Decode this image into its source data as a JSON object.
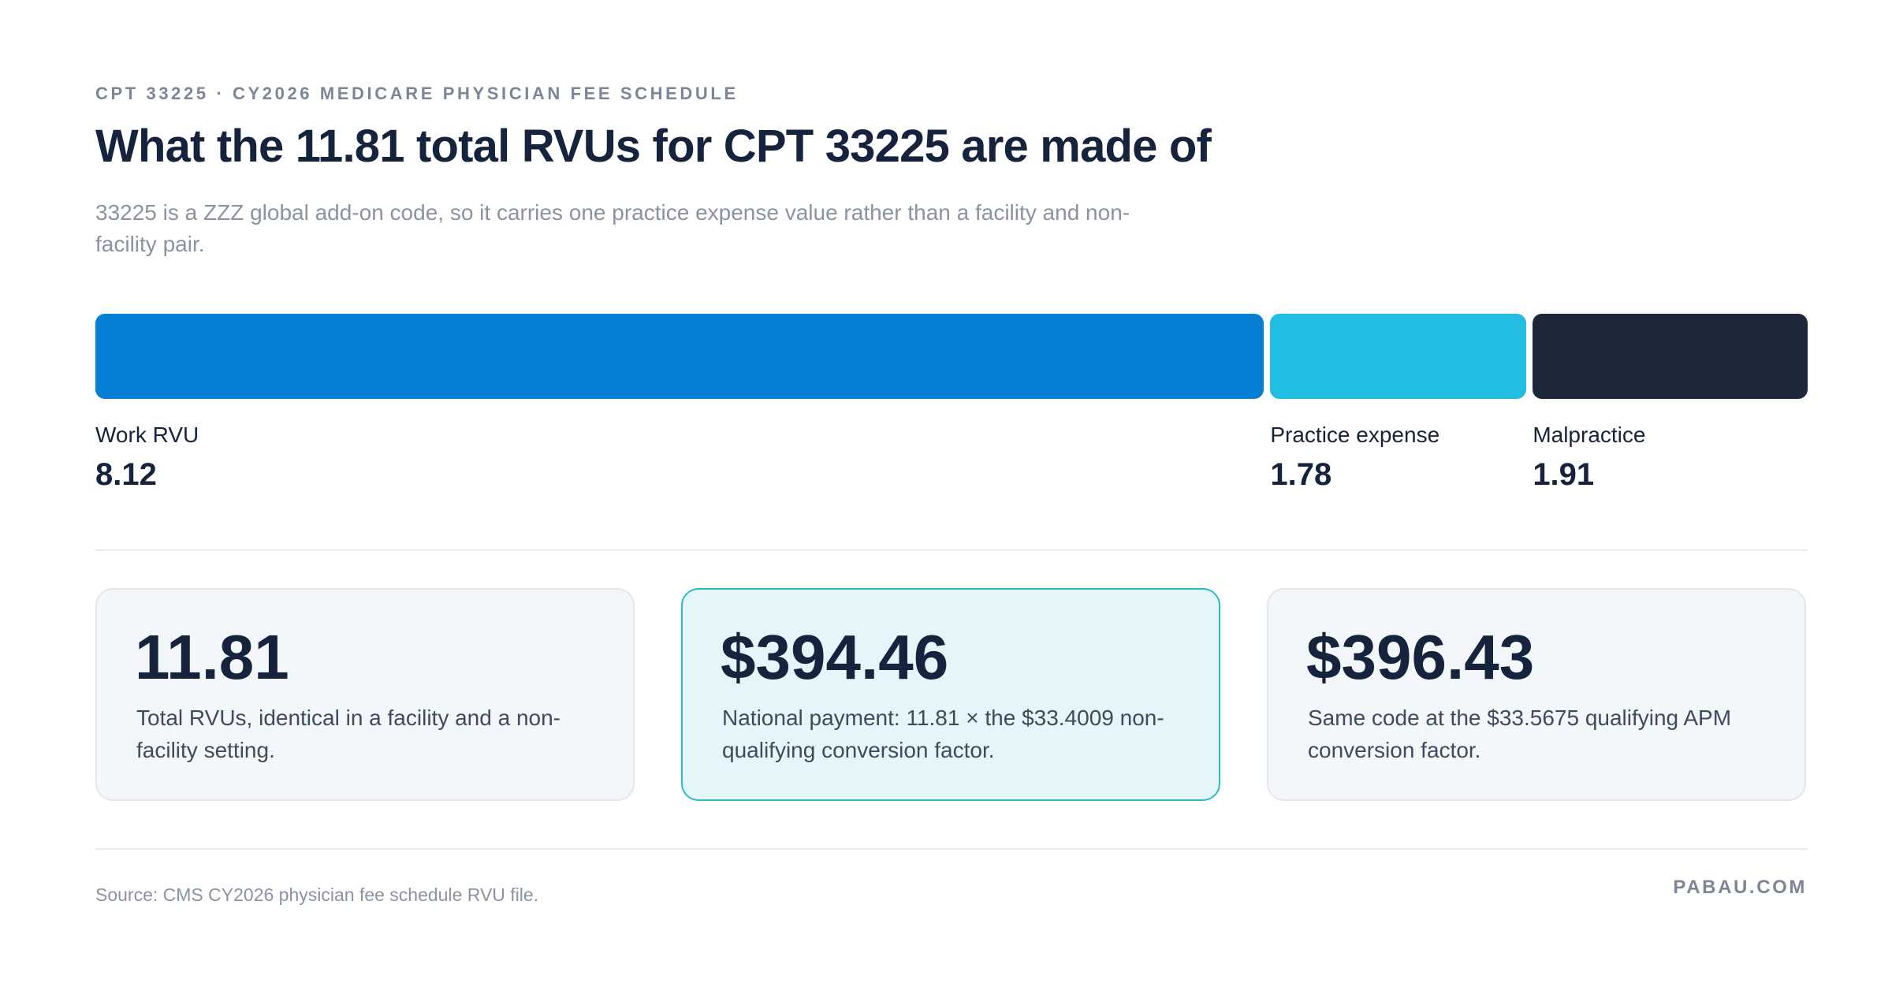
{
  "header": {
    "eyebrow": "CPT 33225 · CY2026 MEDICARE PHYSICIAN FEE SCHEDULE",
    "title": "What the 11.81 total RVUs for CPT 33225 are made of",
    "subtitle": "33225 is a ZZZ global add-on code, so it carries one practice expense value rather than a facility and non-facility pair."
  },
  "chart_data": {
    "type": "bar",
    "orientation": "horizontal-stacked",
    "categories": [
      "Work RVU",
      "Practice expense",
      "Malpractice"
    ],
    "values": [
      8.12,
      1.78,
      1.91
    ],
    "value_labels": [
      "8.12",
      "1.78",
      "1.91"
    ],
    "colors": [
      "#057ed4",
      "#24bde2",
      "#1c273a"
    ],
    "title": "What the 11.81 total RVUs for CPT 33225 are made of",
    "total": 11.81
  },
  "cards": [
    {
      "value": "11.81",
      "description": "Total RVUs, identical in a facility and a non-facility setting."
    },
    {
      "value": "$394.46",
      "description": "National payment: 11.81 × the $33.4009 non-qualifying conversion factor."
    },
    {
      "value": "$396.43",
      "description": "Same code at the $33.5675 qualifying APM conversion factor."
    }
  ],
  "footer": {
    "source": "Source: CMS CY2026 physician fee schedule RVU file.",
    "brand": "PABAU.COM"
  }
}
